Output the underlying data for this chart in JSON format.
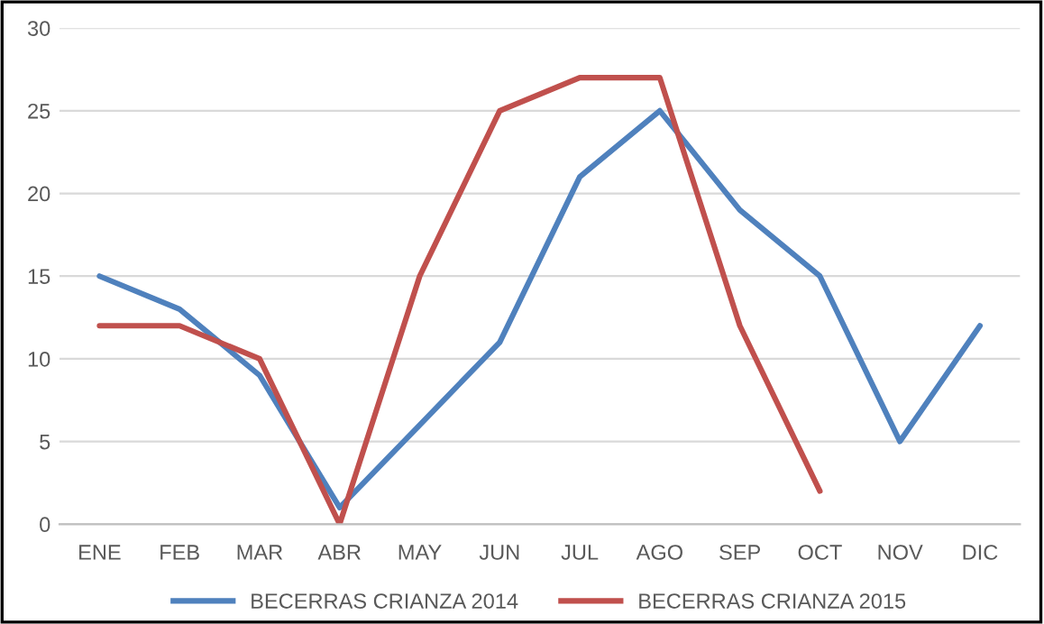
{
  "chart_data": {
    "type": "line",
    "categories": [
      "ENE",
      "FEB",
      "MAR",
      "ABR",
      "MAY",
      "JUN",
      "JUL",
      "AGO",
      "SEP",
      "OCT",
      "NOV",
      "DIC"
    ],
    "series": [
      {
        "name": "BECERRAS CRIANZA 2014",
        "color": "#4f81bd",
        "values": [
          15,
          13,
          9,
          1,
          6,
          11,
          21,
          25,
          19,
          15,
          5,
          12
        ]
      },
      {
        "name": "BECERRAS CRIANZA 2015",
        "color": "#c0504d",
        "values": [
          12,
          12,
          10,
          0,
          15,
          25,
          27,
          27,
          12,
          2,
          null,
          null
        ]
      }
    ],
    "ylim": [
      0,
      30
    ],
    "yticks": [
      0,
      5,
      10,
      15,
      20,
      25,
      30
    ],
    "grid": "y",
    "legend": "bottom",
    "marker": "none",
    "line_style": "solid"
  }
}
